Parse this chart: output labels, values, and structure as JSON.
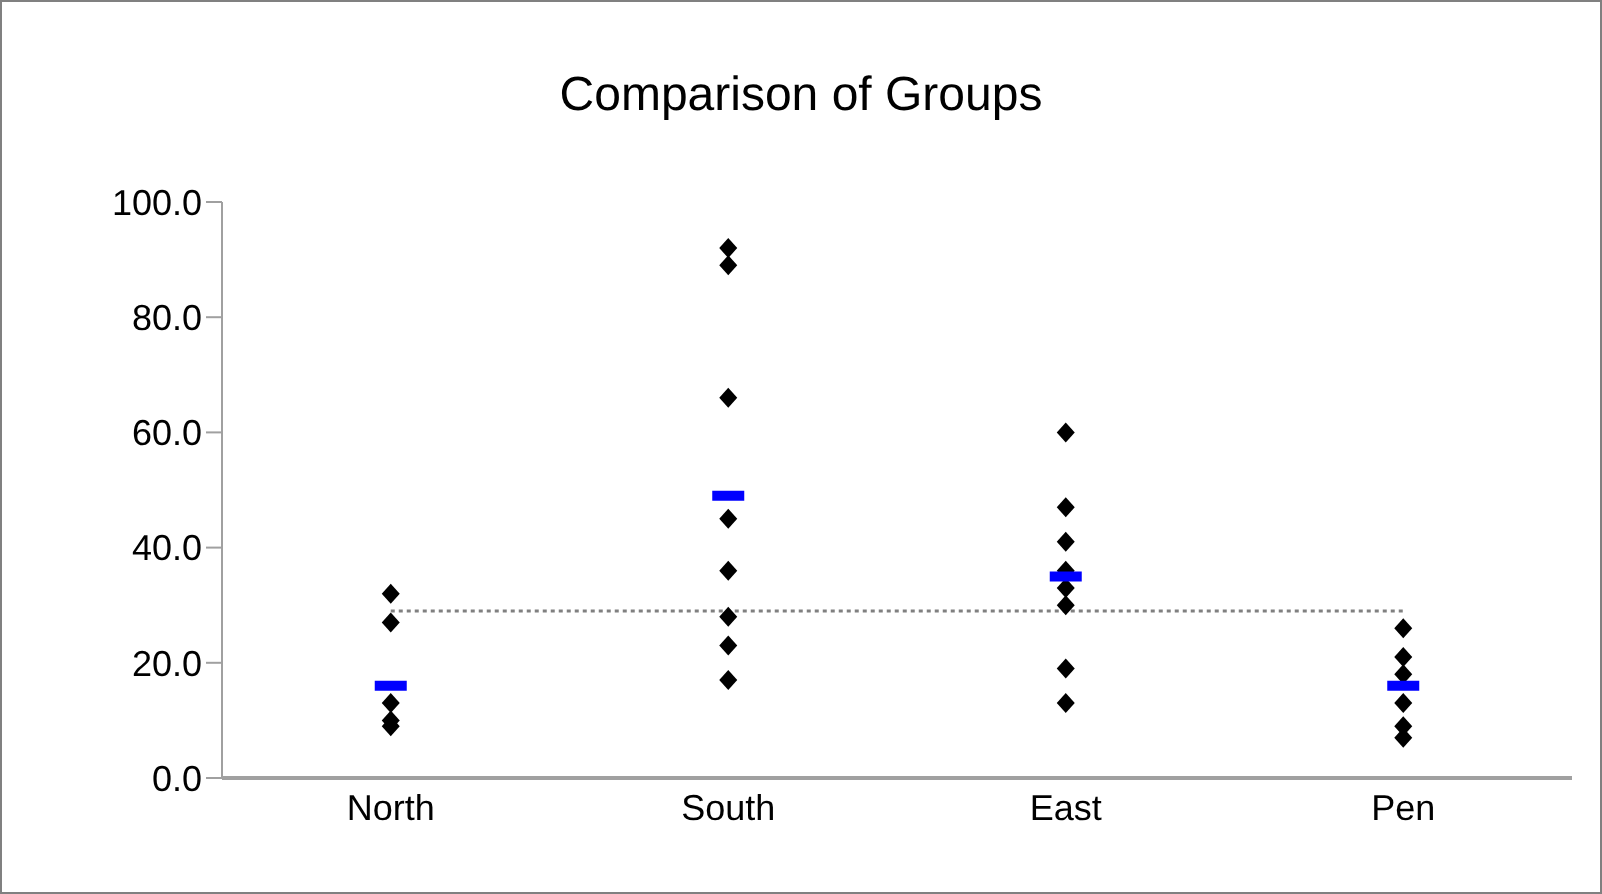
{
  "chart_data": {
    "type": "scatter",
    "title": "Comparison of Groups",
    "categories": [
      "North",
      "South",
      "East",
      "Pen"
    ],
    "series": [
      {
        "marker": "diamond",
        "color": "#000000",
        "x": [
          "North",
          "North",
          "North",
          "North",
          "North",
          "South",
          "South",
          "South",
          "South",
          "South",
          "South",
          "South",
          "South",
          "East",
          "East",
          "East",
          "East",
          "East",
          "East",
          "East",
          "East",
          "Pen",
          "Pen",
          "Pen",
          "Pen",
          "Pen",
          "Pen"
        ],
        "values": [
          32,
          27,
          13,
          10,
          9,
          92,
          89,
          66,
          45,
          36,
          28,
          23,
          17,
          60,
          47,
          41,
          36,
          33,
          30,
          19,
          13,
          26,
          21,
          18,
          13,
          9,
          7
        ]
      },
      {
        "color": "#0000ff",
        "x": [
          "North",
          "South",
          "East",
          "Pen"
        ],
        "values": [
          16,
          49,
          35,
          16
        ]
      }
    ],
    "ylim": [
      0,
      100
    ],
    "yticks": [
      {
        "value": 0,
        "label": "0.0"
      },
      {
        "value": 20,
        "label": "20.0"
      },
      {
        "value": 40,
        "label": "40.0"
      },
      {
        "value": 60,
        "label": "60.0"
      },
      {
        "value": 80,
        "label": "80.0"
      },
      {
        "value": 100,
        "label": "100.0"
      }
    ],
    "ref_lines": [
      {
        "axis": "y",
        "value": 29,
        "label": null,
        "color": "#808080",
        "line_style": "dotted"
      }
    ],
    "grid": false,
    "legend": false
  }
}
